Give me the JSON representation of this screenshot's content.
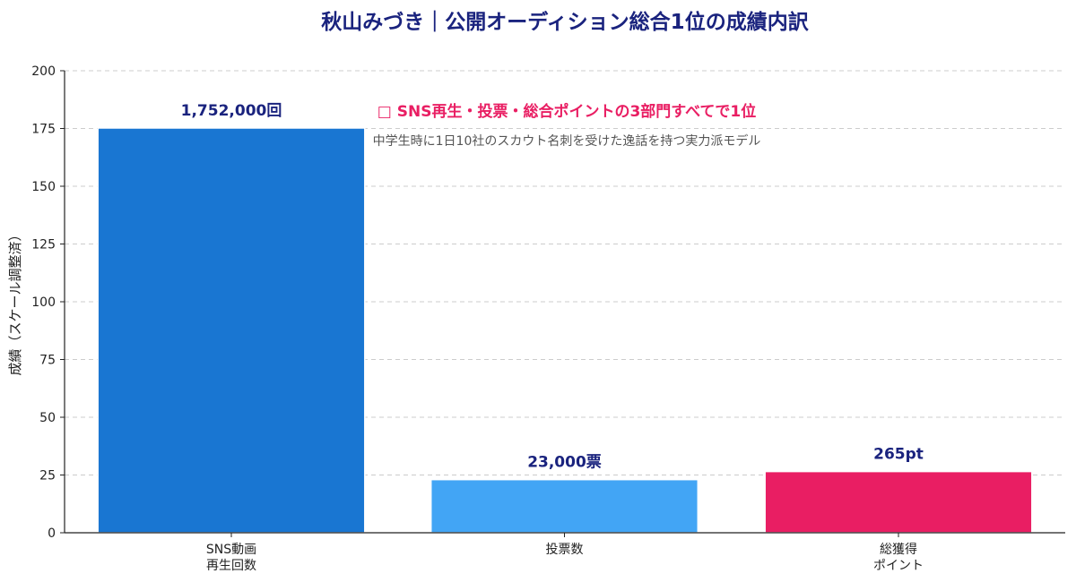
{
  "chart_data": {
    "type": "bar",
    "title": "秋山みづき｜公開オーディション総合1位の成績内訳",
    "ylabel": "成績（スケール調整済）",
    "xlabel": "",
    "ylim": [
      0,
      200
    ],
    "yticks": [
      0,
      25,
      50,
      75,
      100,
      125,
      150,
      175,
      200
    ],
    "grid": true,
    "categories": [
      [
        "SNS動画",
        "再生回数"
      ],
      [
        "投票数"
      ],
      [
        "総獲得",
        "ポイント"
      ]
    ],
    "values": [
      175.2,
      23,
      26.5
    ],
    "value_labels": [
      "1,752,000回",
      "23,000票",
      "265pt"
    ],
    "bar_colors": [
      "#1976D2",
      "#42A5F5",
      "#E91E63"
    ],
    "annotation": {
      "main": "□ SNS再生・投票・総合ポイントの3部門すべてで1位",
      "sub": "中学生時に1日10社のスカウト名刺を受けた逸話を持つ実力派モデル"
    },
    "colors": {
      "title": "#1A237E",
      "value_label": "#1A237E",
      "annotation_main": "#E91E63",
      "annotation_sub": "#555555",
      "axis": "#222222",
      "grid": "#CCCCCC"
    }
  }
}
